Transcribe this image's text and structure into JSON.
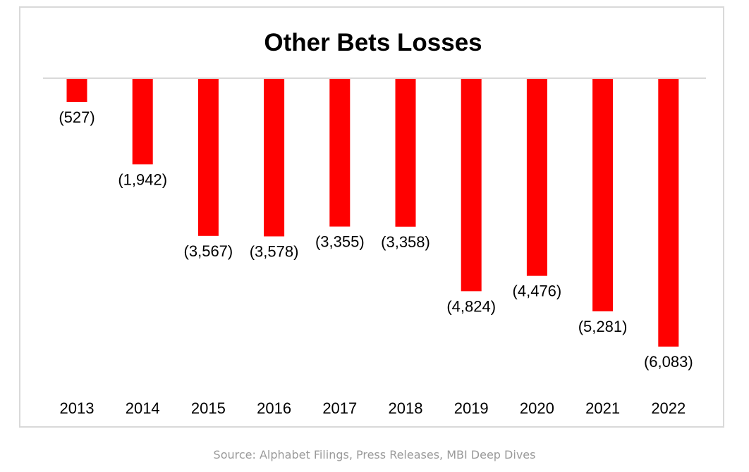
{
  "chart_data": {
    "type": "bar",
    "title": "Other Bets Losses",
    "categories": [
      "2013",
      "2014",
      "2015",
      "2016",
      "2017",
      "2018",
      "2019",
      "2020",
      "2021",
      "2022"
    ],
    "values": [
      -527,
      -1942,
      -3567,
      -3578,
      -3355,
      -3358,
      -4824,
      -4476,
      -5281,
      -6083
    ],
    "data_labels": [
      "(527)",
      "(1,942)",
      "(3,567)",
      "(3,578)",
      "(3,355)",
      "(3,358)",
      "(4,824)",
      "(4,476)",
      "(5,281)",
      "(6,083)"
    ],
    "ylim": [
      -6083,
      0
    ],
    "grid": false,
    "legend": "none",
    "bar_color": "#ff0000",
    "axis_color": "#d9d9d9"
  },
  "footer": {
    "source": "Source: Alphabet Filings, Press Releases, MBI Deep Dives"
  }
}
